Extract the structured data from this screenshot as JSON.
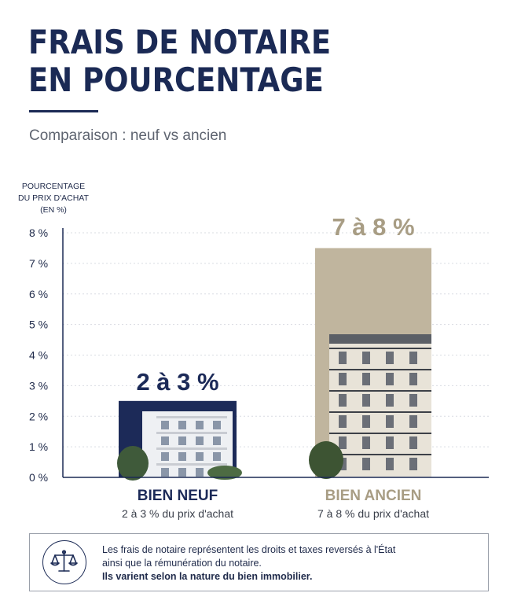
{
  "header": {
    "title_line1": "FRAIS DE NOTAIRE",
    "title_line2": "EN POURCENTAGE",
    "subtitle": "Comparaison : neuf vs ancien"
  },
  "chart_data": {
    "type": "bar",
    "title": "FRAIS DE NOTAIRE EN POURCENTAGE",
    "subtitle": "Comparaison : neuf vs ancien",
    "ylabel_lines": [
      "POURCENTAGE",
      "DU PRIX D'ACHAT",
      "(EN %)"
    ],
    "ylim": [
      0,
      8
    ],
    "yticks": [
      {
        "value": 0,
        "label": "0 %"
      },
      {
        "value": 1,
        "label": "1 %"
      },
      {
        "value": 2,
        "label": "2 %"
      },
      {
        "value": 3,
        "label": "3 %"
      },
      {
        "value": 4,
        "label": "4 %"
      },
      {
        "value": 5,
        "label": "5 %"
      },
      {
        "value": 6,
        "label": "6 %"
      },
      {
        "value": 7,
        "label": "7 %"
      },
      {
        "value": 8,
        "label": "8 %"
      }
    ],
    "grid": true,
    "categories": [
      "BIEN NEUF",
      "BIEN ANCIEN"
    ],
    "values": [
      2.5,
      7.5
    ],
    "ranges": [
      [
        2,
        3
      ],
      [
        7,
        8
      ]
    ],
    "data_labels": [
      "2 à 3 %",
      "7 à 8 %"
    ],
    "category_subtitles": [
      "2 à 3 % du prix d'achat",
      "7 à 8 % du prix d'achat"
    ],
    "colors": [
      "#1c2a58",
      "#c0b59e"
    ],
    "label_colors": [
      "#1c2a58",
      "#a89d84"
    ]
  },
  "note": {
    "icon": "scales-of-justice-icon",
    "line1": "Les frais de notaire représentent les droits et taxes reversés à l'État",
    "line2": "ainsi que la rémunération du notaire.",
    "line3": "Ils varient selon la nature du bien immobilier."
  }
}
